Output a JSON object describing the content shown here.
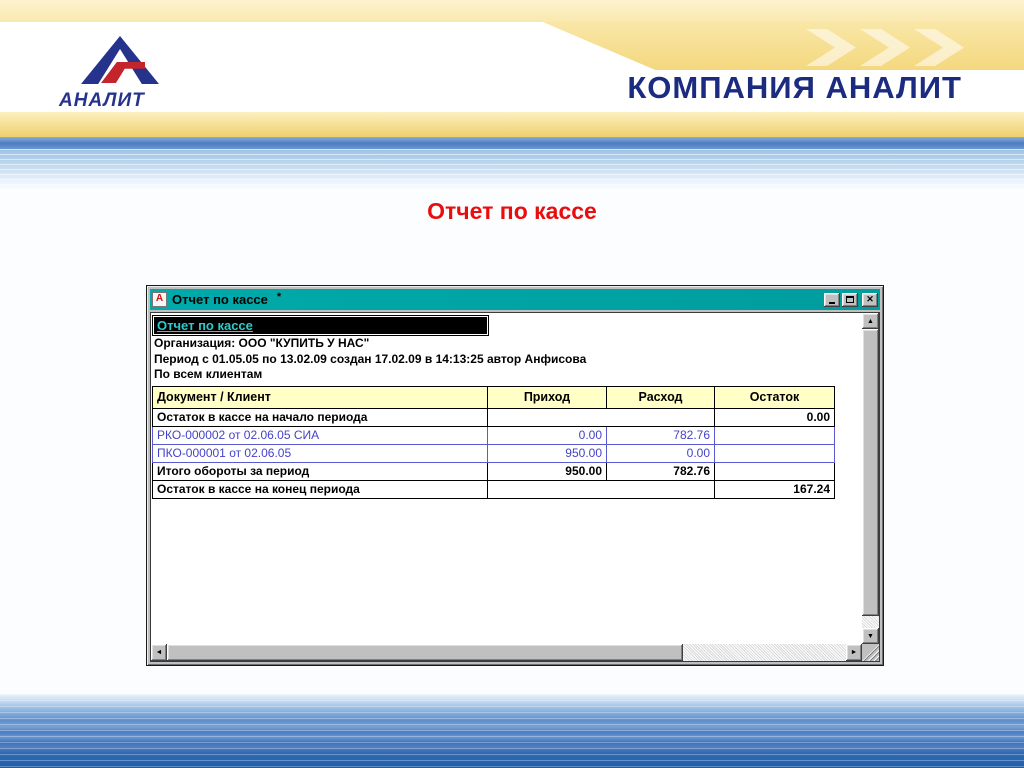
{
  "slide": {
    "logo_text": "АНАЛИТ",
    "company_title": "КОМПАНИЯ АНАЛИТ",
    "page_title": "Отчет по кассе"
  },
  "window": {
    "title": "Отчет по кассе",
    "modified_marker": "*",
    "icons": {
      "app_icon_glyph": "А",
      "close_glyph": "✕",
      "scroll_up": "▲",
      "scroll_down": "▼",
      "scroll_left": "◄",
      "scroll_right": "►"
    },
    "report": {
      "selected_header": "Отчет по кассе",
      "info_lines": [
        "Организация: ООО \"КУПИТЬ У НАС\"",
        "Период с 01.05.05 по 13.02.09 создан 17.02.09 в 14:13:25 автор Анфисова",
        "По всем клиентам"
      ],
      "table": {
        "columns": [
          "Документ / Клиент",
          "Приход",
          "Расход",
          "Остаток"
        ],
        "rows": [
          {
            "document": "Остаток в кассе на начало периода",
            "prihod": "",
            "rashod": "",
            "ostatok": "0.00",
            "style": "total",
            "merge_flows": true
          },
          {
            "document": "РКО-000002 от 02.06.05 СИА",
            "prihod": "0.00",
            "rashod": "782.76",
            "ostatok": "",
            "style": "link",
            "merge_flows": false
          },
          {
            "document": "ПКО-000001 от 02.06.05",
            "prihod": "950.00",
            "rashod": "0.00",
            "ostatok": "",
            "style": "link",
            "merge_flows": false
          },
          {
            "document": "Итого обороты за период",
            "prihod": "950.00",
            "rashod": "782.76",
            "ostatok": "",
            "style": "total",
            "merge_flows": false
          },
          {
            "document": "Остаток в кассе на конец периода",
            "prihod": "",
            "rashod": "",
            "ostatok": "167.24",
            "style": "total",
            "merge_flows": true
          }
        ]
      }
    }
  },
  "colors": {
    "titlebar_teal": "#00A5A5",
    "table_header_bg": "#FFFFC6",
    "link_blue": "#4444CC",
    "slide_title_red": "#EA0D0D",
    "brand_navy": "#1B2B80",
    "logo_red": "#C4242B",
    "footer_blue": "#2E68B0"
  }
}
